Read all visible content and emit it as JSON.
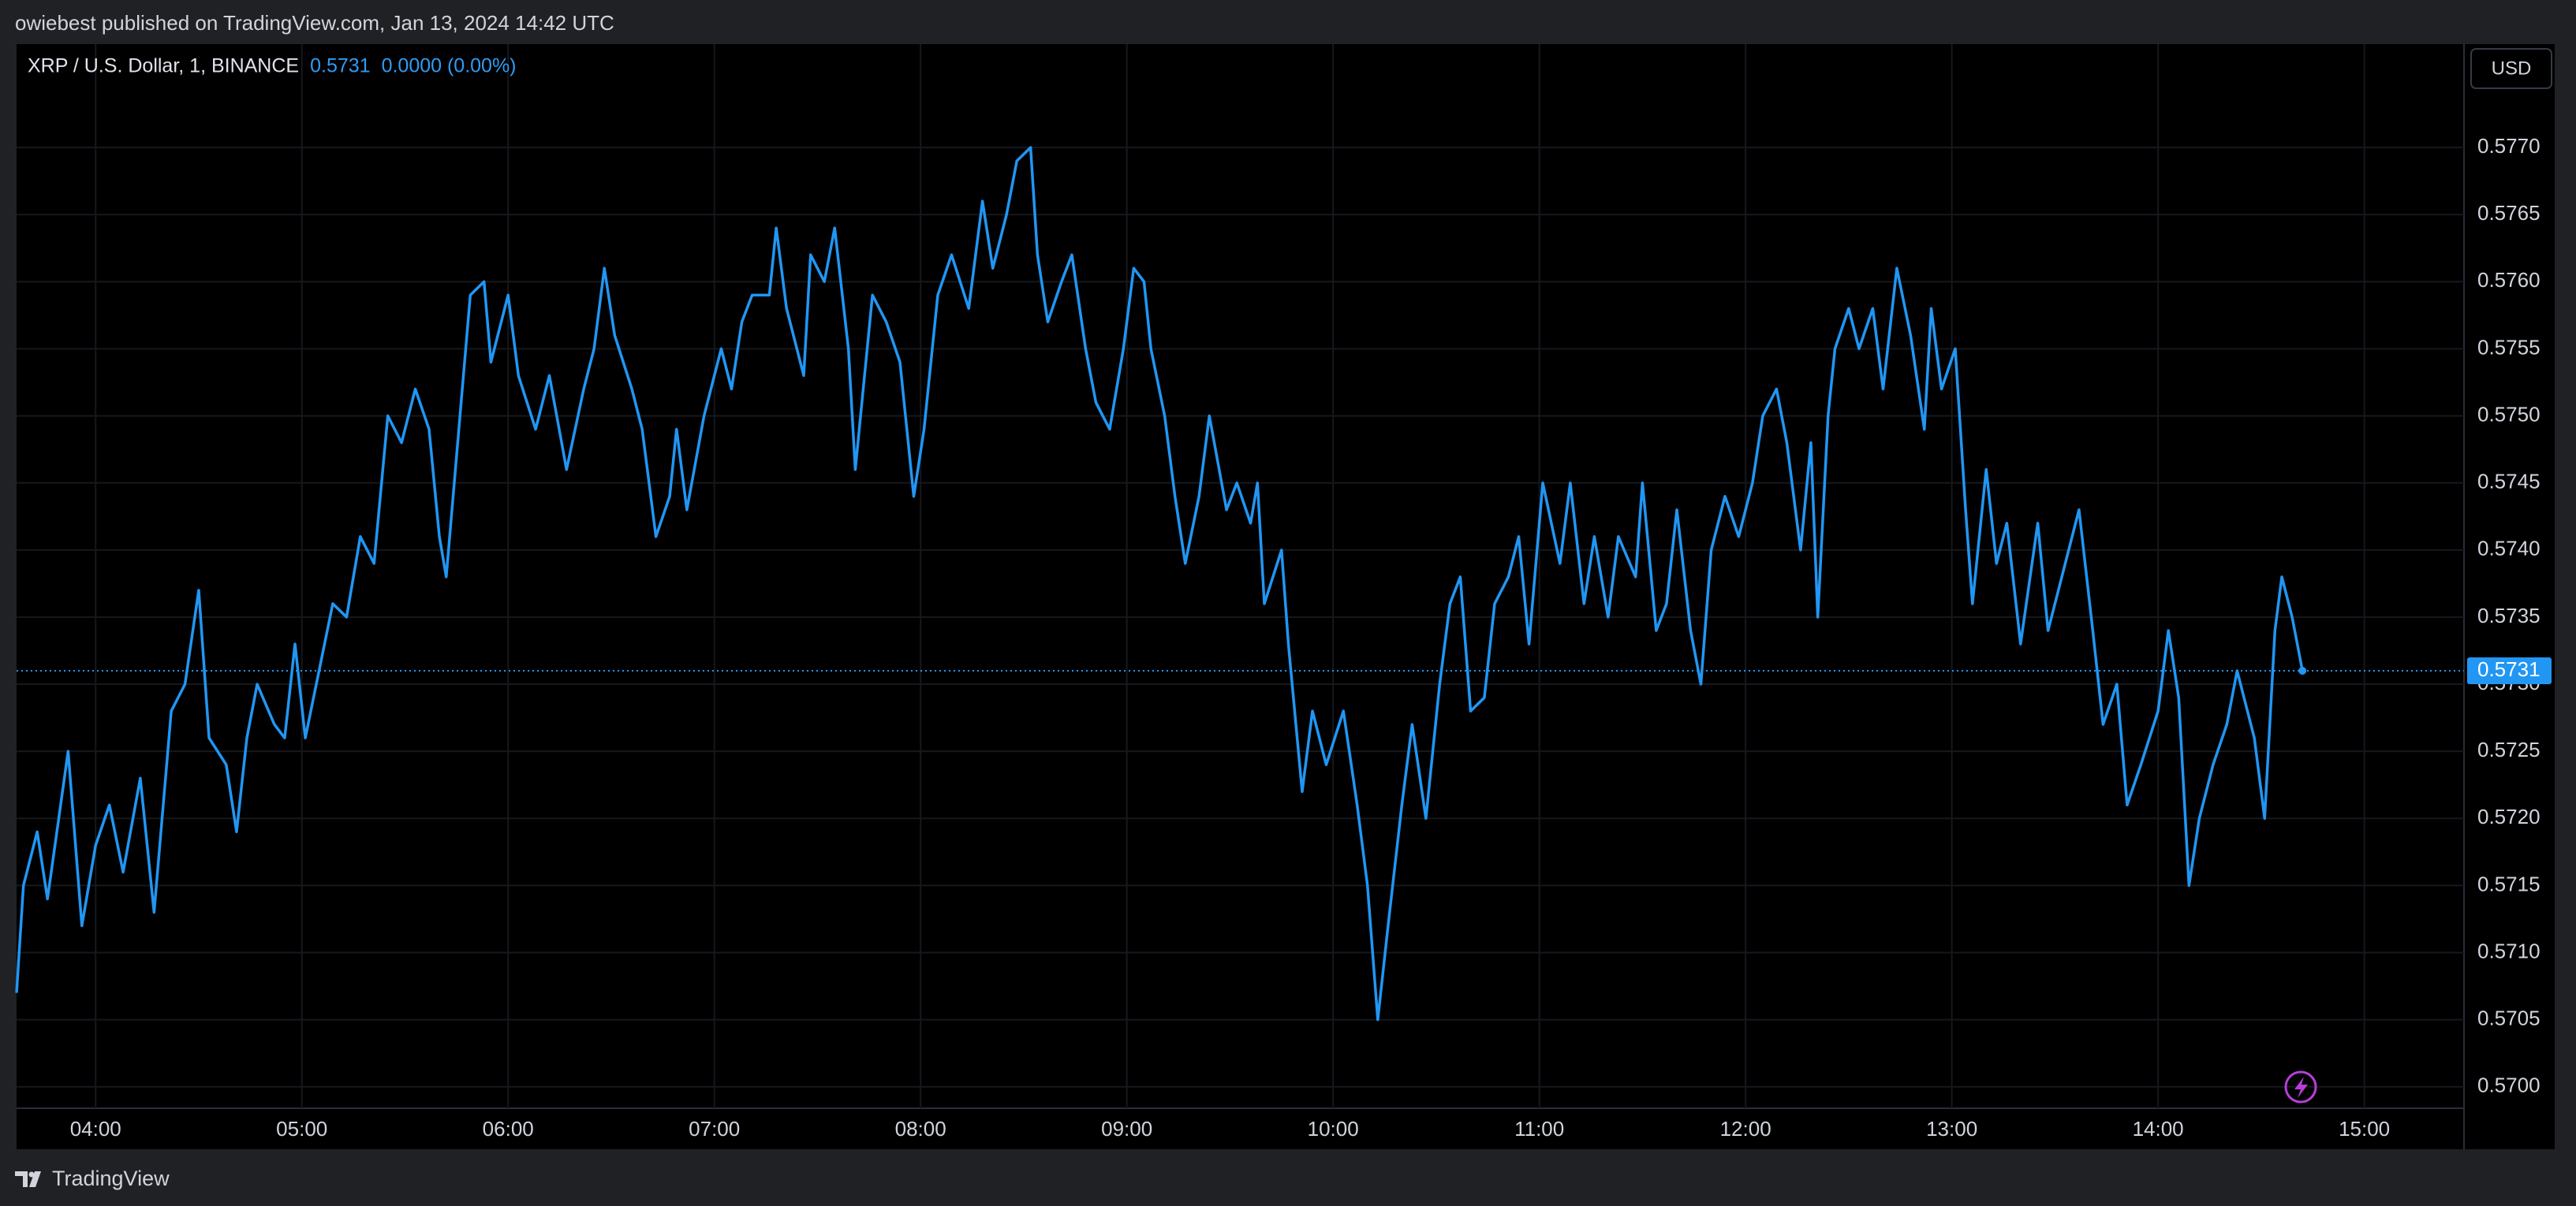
{
  "header": {
    "published": "owiebest published on TradingView.com, Jan 13, 2024 14:42 UTC"
  },
  "footer": {
    "brand": "TradingView"
  },
  "chart_data": {
    "type": "line",
    "title": "XRP / U.S. Dollar, 1, BINANCE",
    "last_price": 0.5731,
    "change": "0.0000 (0.00%)",
    "currency": "USD",
    "color": "#2196f3",
    "grid": true,
    "xlim": [
      "03:37",
      "15:29"
    ],
    "xticks": [
      "04:00",
      "05:00",
      "06:00",
      "07:00",
      "08:00",
      "09:00",
      "10:00",
      "11:00",
      "12:00",
      "13:00",
      "14:00",
      "15:00"
    ],
    "ylim": [
      0.56984,
      0.57777
    ],
    "yticks": [
      {
        "value": 0.57,
        "label": "0.5700"
      },
      {
        "value": 0.5705,
        "label": "0.5705"
      },
      {
        "value": 0.571,
        "label": "0.5710"
      },
      {
        "value": 0.5715,
        "label": "0.5715"
      },
      {
        "value": 0.572,
        "label": "0.5720"
      },
      {
        "value": 0.5725,
        "label": "0.5725"
      },
      {
        "value": 0.573,
        "label": "0.5730"
      },
      {
        "value": 0.5735,
        "label": "0.5735"
      },
      {
        "value": 0.574,
        "label": "0.5740"
      },
      {
        "value": 0.5745,
        "label": "0.5745"
      },
      {
        "value": 0.575,
        "label": "0.5750"
      },
      {
        "value": 0.5755,
        "label": "0.5755"
      },
      {
        "value": 0.576,
        "label": "0.5760"
      },
      {
        "value": 0.5765,
        "label": "0.5765"
      },
      {
        "value": 0.577,
        "label": "0.5770"
      }
    ],
    "x": [
      "03:37",
      "03:39",
      "03:43",
      "03:46",
      "03:52",
      "03:56",
      "04:00",
      "04:04",
      "04:08",
      "04:13",
      "04:17",
      "04:22",
      "04:26",
      "04:30",
      "04:33",
      "04:38",
      "04:41",
      "04:44",
      "04:47",
      "04:52",
      "04:55",
      "04:58",
      "05:01",
      "05:05",
      "05:09",
      "05:13",
      "05:17",
      "05:21",
      "05:25",
      "05:29",
      "05:33",
      "05:37",
      "05:40",
      "05:42",
      "05:46",
      "05:49",
      "05:53",
      "05:55",
      "06:00",
      "06:03",
      "06:08",
      "06:12",
      "06:17",
      "06:22",
      "06:25",
      "06:28",
      "06:31",
      "06:36",
      "06:39",
      "06:43",
      "06:47",
      "06:49",
      "06:52",
      "06:57",
      "07:02",
      "07:05",
      "07:08",
      "07:11",
      "07:16",
      "07:18",
      "07:21",
      "07:26",
      "07:28",
      "07:32",
      "07:35",
      "07:39",
      "07:41",
      "07:46",
      "07:50",
      "07:54",
      "07:58",
      "08:01",
      "08:05",
      "08:09",
      "08:14",
      "08:18",
      "08:21",
      "08:25",
      "08:28",
      "08:32",
      "08:34",
      "08:37",
      "08:41",
      "08:44",
      "08:48",
      "08:51",
      "08:55",
      "08:59",
      "09:02",
      "09:05",
      "09:07",
      "09:11",
      "09:14",
      "09:17",
      "09:21",
      "09:24",
      "09:29",
      "09:32",
      "09:36",
      "09:38",
      "09:40",
      "09:45",
      "09:47",
      "09:51",
      "09:54",
      "09:58",
      "10:03",
      "10:07",
      "10:10",
      "10:13",
      "10:16",
      "10:20",
      "10:23",
      "10:27",
      "10:31",
      "10:34",
      "10:37",
      "10:40",
      "10:44",
      "10:47",
      "10:51",
      "10:54",
      "10:57",
      "11:01",
      "11:06",
      "11:09",
      "11:13",
      "11:16",
      "11:20",
      "11:23",
      "11:28",
      "11:30",
      "11:34",
      "11:37",
      "11:40",
      "11:44",
      "11:47",
      "11:50",
      "11:54",
      "11:58",
      "12:02",
      "12:05",
      "12:09",
      "12:12",
      "12:16",
      "12:19",
      "12:21",
      "12:24",
      "12:26",
      "12:30",
      "12:33",
      "12:37",
      "12:40",
      "12:44",
      "12:48",
      "12:52",
      "12:54",
      "12:57",
      "13:01",
      "13:04",
      "13:06",
      "13:10",
      "13:13",
      "13:16",
      "13:20",
      "13:25",
      "13:28",
      "13:32",
      "13:37",
      "13:41",
      "13:44",
      "13:48",
      "13:51",
      "13:55",
      "14:00",
      "14:03",
      "14:06",
      "14:09",
      "14:12",
      "14:16",
      "14:20",
      "14:23",
      "14:28",
      "14:31",
      "14:34",
      "14:36",
      "14:39",
      "14:42"
    ],
    "values": [
      0.5707,
      0.5715,
      0.5719,
      0.5714,
      0.5725,
      0.5712,
      0.5718,
      0.5721,
      0.5716,
      0.5723,
      0.5713,
      0.5728,
      0.573,
      0.5737,
      0.5726,
      0.5724,
      0.5719,
      0.5726,
      0.573,
      0.5727,
      0.5726,
      0.5733,
      0.5726,
      0.5731,
      0.5736,
      0.5735,
      0.5741,
      0.5739,
      0.575,
      0.5748,
      0.5752,
      0.5749,
      0.5741,
      0.5738,
      0.575,
      0.5759,
      0.576,
      0.5754,
      0.5759,
      0.5753,
      0.5749,
      0.5753,
      0.5746,
      0.5752,
      0.5755,
      0.5761,
      0.5756,
      0.5752,
      0.5749,
      0.5741,
      0.5744,
      0.5749,
      0.5743,
      0.575,
      0.5755,
      0.5752,
      0.5757,
      0.5759,
      0.5759,
      0.5764,
      0.5758,
      0.5753,
      0.5762,
      0.576,
      0.5764,
      0.5755,
      0.5746,
      0.5759,
      0.5757,
      0.5754,
      0.5744,
      0.5749,
      0.5759,
      0.5762,
      0.5758,
      0.5766,
      0.5761,
      0.5765,
      0.5769,
      0.577,
      0.5762,
      0.5757,
      0.576,
      0.5762,
      0.5755,
      0.5751,
      0.5749,
      0.5755,
      0.5761,
      0.576,
      0.5755,
      0.575,
      0.5744,
      0.5739,
      0.5744,
      0.575,
      0.5743,
      0.5745,
      0.5742,
      0.5745,
      0.5736,
      0.574,
      0.5733,
      0.5722,
      0.5728,
      0.5724,
      0.5728,
      0.5721,
      0.5715,
      0.5705,
      0.5712,
      0.5721,
      0.5727,
      0.572,
      0.573,
      0.5736,
      0.5738,
      0.5728,
      0.5729,
      0.5736,
      0.5738,
      0.5741,
      0.5733,
      0.5745,
      0.5739,
      0.5745,
      0.5736,
      0.5741,
      0.5735,
      0.5741,
      0.5738,
      0.5745,
      0.5734,
      0.5736,
      0.5743,
      0.5734,
      0.573,
      0.574,
      0.5744,
      0.5741,
      0.5745,
      0.575,
      0.5752,
      0.5748,
      0.574,
      0.5748,
      0.5735,
      0.575,
      0.5755,
      0.5758,
      0.5755,
      0.5758,
      0.5752,
      0.5761,
      0.5756,
      0.5749,
      0.5758,
      0.5752,
      0.5755,
      0.5743,
      0.5736,
      0.5746,
      0.5739,
      0.5742,
      0.5733,
      0.5742,
      0.5734,
      0.5738,
      0.5743,
      0.5734,
      0.5727,
      0.573,
      0.5721,
      0.5724,
      0.5728,
      0.5734,
      0.5729,
      0.5715,
      0.572,
      0.5724,
      0.5727,
      0.5731,
      0.5726,
      0.572,
      0.5734,
      0.5738,
      0.5735,
      0.5731
    ]
  }
}
